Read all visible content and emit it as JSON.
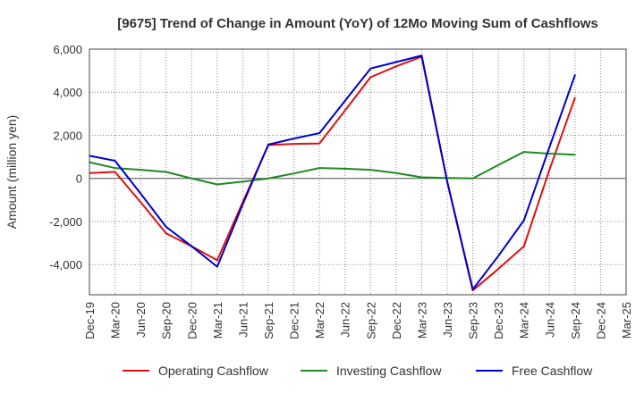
{
  "chart_data": {
    "type": "line",
    "title": "[9675]  Trend of Change in Amount (YoY) of 12Mo Moving Sum of Cashflows",
    "xlabel": "",
    "ylabel": "Amount (million yen)",
    "ylim": [
      -5400,
      6000
    ],
    "yticks": [
      -4000,
      -2000,
      0,
      2000,
      4000,
      6000
    ],
    "ytick_labels": [
      "-4,000",
      "-2,000",
      "0",
      "2,000",
      "4,000",
      "6,000"
    ],
    "categories": [
      "Dec-19",
      "Mar-20",
      "Jun-20",
      "Sep-20",
      "Dec-20",
      "Mar-21",
      "Jun-21",
      "Sep-21",
      "Dec-21",
      "Mar-22",
      "Jun-22",
      "Sep-22",
      "Dec-22",
      "Mar-23",
      "Jun-23",
      "Sep-23",
      "Dec-23",
      "Mar-24",
      "Jun-24",
      "Sep-24",
      "Dec-24",
      "Mar-25"
    ],
    "grid": true,
    "legend_position": "bottom",
    "series": [
      {
        "name": "Operating Cashflow",
        "color": "#dd1111",
        "values": [
          250,
          300,
          -1100,
          -2550,
          -3150,
          -3800,
          -1100,
          1550,
          1600,
          1620,
          3150,
          4700,
          5200,
          5650,
          -150,
          -5200,
          -4200,
          -3150,
          400,
          3750,
          null,
          null
        ]
      },
      {
        "name": "Investing Cashflow",
        "color": "#228822",
        "values": [
          750,
          480,
          400,
          300,
          0,
          -280,
          -150,
          0,
          230,
          480,
          450,
          400,
          250,
          50,
          20,
          0,
          620,
          1230,
          1150,
          1100,
          null,
          null
        ]
      },
      {
        "name": "Free Cashflow",
        "color": "#0000cc",
        "values": [
          1050,
          820,
          -700,
          -2250,
          -3150,
          -4100,
          -1200,
          1570,
          1850,
          2100,
          3600,
          5100,
          5400,
          5700,
          -150,
          -5150,
          -3600,
          -1950,
          1450,
          4800,
          null,
          null
        ]
      }
    ]
  }
}
